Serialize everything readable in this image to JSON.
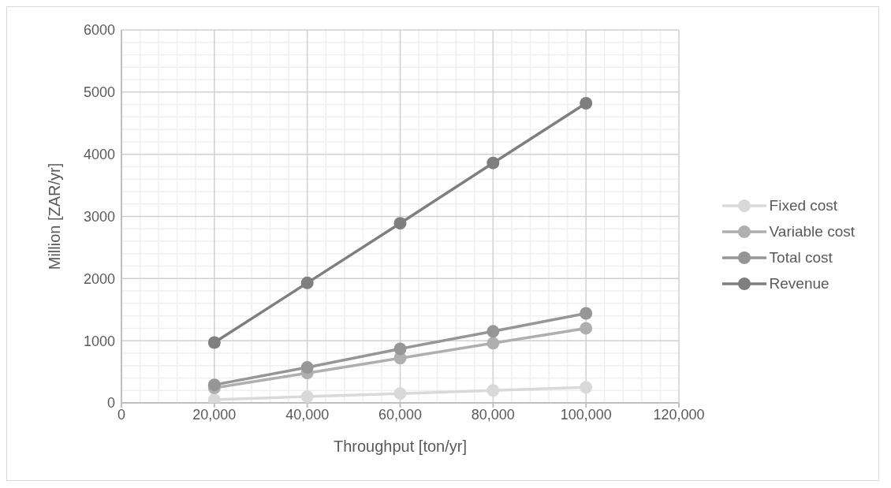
{
  "chart_data": {
    "type": "line",
    "xlabel": "Throughput [ton/yr]",
    "ylabel": "Million [ZAR/yr]",
    "x": [
      20000,
      40000,
      60000,
      80000,
      100000
    ],
    "series": [
      {
        "name": "Fixed cost",
        "color": "#d9d9d9",
        "values": [
          50,
          100,
          150,
          200,
          250
        ]
      },
      {
        "name": "Variable cost",
        "color": "#afafaf",
        "values": [
          240,
          480,
          720,
          960,
          1200
        ]
      },
      {
        "name": "Total cost",
        "color": "#969696",
        "values": [
          290,
          570,
          870,
          1150,
          1440
        ]
      },
      {
        "name": "Revenue",
        "color": "#7f7f7f",
        "values": [
          970,
          1930,
          2890,
          3860,
          4820
        ]
      }
    ],
    "xlim": [
      0,
      120000
    ],
    "xticks": [
      0,
      {
        "value": 20000,
        "label": "20,000"
      },
      {
        "value": 40000,
        "label": "40,000"
      },
      {
        "value": 60000,
        "label": "60,000"
      },
      {
        "value": 80000,
        "label": "80,000"
      },
      {
        "value": 100000,
        "label": "100,000"
      },
      {
        "value": 120000,
        "label": "120,000"
      }
    ],
    "ylim": [
      0,
      6000
    ],
    "yticks": [
      0,
      1000,
      2000,
      3000,
      4000,
      5000,
      6000
    ],
    "grid": true,
    "legend": "right",
    "marker": "circle",
    "line_style": "solid"
  }
}
